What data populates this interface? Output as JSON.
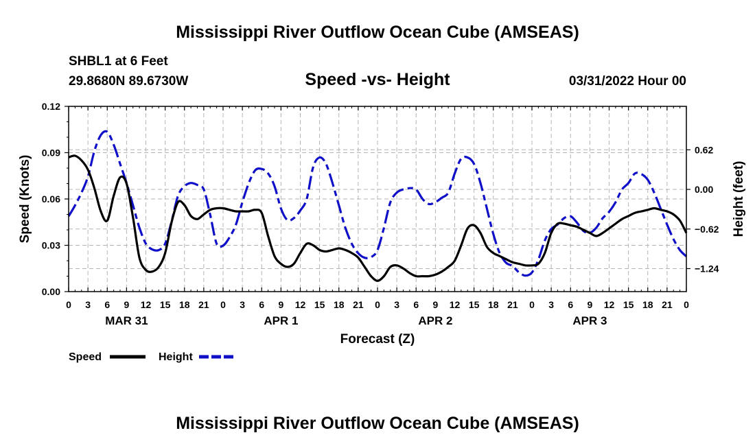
{
  "page": {
    "title": "Mississippi River Outflow Ocean Cube (AMSEAS)",
    "footer_title": "Mississippi River Outflow Ocean Cube (AMSEAS)",
    "station": "SHBL1 at 6 Feet",
    "coords": "29.8680N  89.6730W",
    "datetime": "03/31/2022 Hour 00"
  },
  "colors": {
    "speed": "#000000",
    "height": "#1010c8",
    "grid": "#b4b4b4"
  },
  "chart_data": {
    "type": "line",
    "title": "Speed -vs- Height",
    "xlabel": "Forecast (Z)",
    "ylabel": "Speed (Knots)",
    "y2label": "Height (feet)",
    "x_range_hours": [
      0,
      96
    ],
    "x_tick_labels": [
      "0",
      "3",
      "6",
      "9",
      "12",
      "15",
      "18",
      "21",
      "0",
      "3",
      "6",
      "9",
      "12",
      "15",
      "18",
      "21",
      "0",
      "3",
      "6",
      "9",
      "12",
      "15",
      "18",
      "21",
      "0",
      "3",
      "6",
      "9",
      "12",
      "15",
      "18",
      "21",
      "0"
    ],
    "day_labels": [
      {
        "label": "MAR 31",
        "hour": 9
      },
      {
        "label": "APR 1",
        "hour": 33
      },
      {
        "label": "APR 2",
        "hour": 57
      },
      {
        "label": "APR 3",
        "hour": 81
      }
    ],
    "y_range": [
      0,
      0.12
    ],
    "y_ticks": [
      0.0,
      0.03,
      0.06,
      0.09,
      0.12
    ],
    "y_tick_labels": [
      "0.00",
      "0.03",
      "0.06",
      "0.09",
      "0.12"
    ],
    "y2_range": [
      -1.6,
      1.3
    ],
    "y2_ticks": [
      -1.24,
      -0.62,
      0.0,
      0.62
    ],
    "y2_tick_labels": [
      "−1.24",
      "−0.62",
      "0.00",
      "0.62"
    ],
    "legend": [
      {
        "name": "Speed",
        "style": "solid"
      },
      {
        "name": "Height",
        "style": "dashed"
      }
    ],
    "series": [
      {
        "name": "Speed",
        "unit": "knots",
        "axis": "left",
        "x": [
          0,
          1,
          2,
          3,
          4,
          5,
          6,
          7,
          8,
          9,
          10,
          11,
          12,
          13,
          14,
          15,
          16,
          17,
          18,
          19,
          20,
          21,
          22,
          23,
          24,
          25,
          26,
          27,
          28,
          29,
          30,
          31,
          32,
          33,
          34,
          35,
          36,
          37,
          38,
          39,
          40,
          41,
          42,
          43,
          44,
          45,
          46,
          47,
          48,
          49,
          50,
          51,
          52,
          53,
          54,
          55,
          56,
          57,
          58,
          59,
          60,
          61,
          62,
          63,
          64,
          65,
          66,
          67,
          68,
          69,
          70,
          71,
          72,
          73,
          74,
          75,
          76,
          77,
          78,
          79,
          80,
          81,
          82,
          83,
          84,
          85,
          86,
          87,
          88,
          89,
          90,
          91,
          92,
          93,
          94,
          95,
          96
        ],
        "values": [
          0.087,
          0.088,
          0.085,
          0.079,
          0.067,
          0.052,
          0.046,
          0.062,
          0.074,
          0.07,
          0.048,
          0.022,
          0.014,
          0.013,
          0.016,
          0.025,
          0.045,
          0.058,
          0.056,
          0.049,
          0.047,
          0.05,
          0.053,
          0.054,
          0.054,
          0.053,
          0.052,
          0.052,
          0.052,
          0.053,
          0.051,
          0.036,
          0.023,
          0.018,
          0.016,
          0.018,
          0.025,
          0.031,
          0.03,
          0.027,
          0.026,
          0.027,
          0.028,
          0.027,
          0.025,
          0.022,
          0.016,
          0.01,
          0.007,
          0.01,
          0.016,
          0.017,
          0.015,
          0.012,
          0.01,
          0.01,
          0.01,
          0.011,
          0.013,
          0.016,
          0.02,
          0.03,
          0.041,
          0.043,
          0.038,
          0.029,
          0.025,
          0.023,
          0.021,
          0.019,
          0.018,
          0.017,
          0.017,
          0.018,
          0.025,
          0.038,
          0.044,
          0.044,
          0.043,
          0.042,
          0.04,
          0.038,
          0.036,
          0.038,
          0.041,
          0.044,
          0.047,
          0.049,
          0.051,
          0.052,
          0.053,
          0.054,
          0.053,
          0.052,
          0.05,
          0.046,
          0.038
        ]
      },
      {
        "name": "Height",
        "unit": "feet",
        "axis": "right",
        "x": [
          0,
          1,
          2,
          3,
          4,
          5,
          6,
          7,
          8,
          9,
          10,
          11,
          12,
          13,
          14,
          15,
          16,
          17,
          18,
          19,
          20,
          21,
          22,
          23,
          24,
          25,
          26,
          27,
          28,
          29,
          30,
          31,
          32,
          33,
          34,
          35,
          36,
          37,
          38,
          39,
          40,
          41,
          42,
          43,
          44,
          45,
          46,
          47,
          48,
          49,
          50,
          51,
          52,
          53,
          54,
          55,
          56,
          57,
          58,
          59,
          60,
          61,
          62,
          63,
          64,
          65,
          66,
          67,
          68,
          69,
          70,
          71,
          72,
          73,
          74,
          75,
          76,
          77,
          78,
          79,
          80,
          81,
          82,
          83,
          84,
          85,
          86,
          87,
          88,
          89,
          90,
          91,
          92,
          93,
          94,
          95,
          96
        ],
        "values": [
          -0.42,
          -0.25,
          -0.05,
          0.2,
          0.6,
          0.85,
          0.9,
          0.7,
          0.4,
          0.1,
          -0.25,
          -0.6,
          -0.85,
          -0.94,
          -0.95,
          -0.85,
          -0.5,
          -0.1,
          0.05,
          0.1,
          0.07,
          0.0,
          -0.4,
          -0.85,
          -0.88,
          -0.75,
          -0.55,
          -0.2,
          0.1,
          0.3,
          0.32,
          0.25,
          0.05,
          -0.3,
          -0.48,
          -0.45,
          -0.33,
          -0.15,
          0.35,
          0.5,
          0.4,
          0.1,
          -0.25,
          -0.6,
          -0.85,
          -1.0,
          -1.07,
          -1.06,
          -0.95,
          -0.6,
          -0.2,
          -0.05,
          0.0,
          0.02,
          0.0,
          -0.15,
          -0.23,
          -0.2,
          -0.13,
          -0.05,
          0.25,
          0.48,
          0.5,
          0.4,
          0.1,
          -0.3,
          -0.7,
          -1.0,
          -1.15,
          -1.2,
          -1.3,
          -1.35,
          -1.3,
          -1.1,
          -0.8,
          -0.62,
          -0.55,
          -0.45,
          -0.42,
          -0.52,
          -0.65,
          -0.68,
          -0.6,
          -0.45,
          -0.35,
          -0.2,
          0.0,
          0.1,
          0.25,
          0.24,
          0.15,
          -0.05,
          -0.3,
          -0.55,
          -0.78,
          -0.95,
          -1.05
        ]
      }
    ]
  }
}
